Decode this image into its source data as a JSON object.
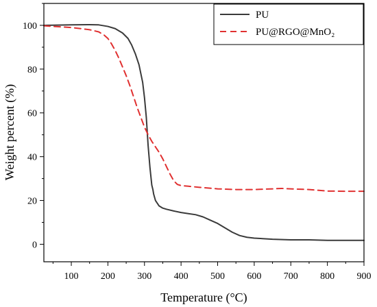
{
  "chart_data": {
    "type": "line",
    "xlabel": "Temperature (°C)",
    "ylabel": "Weight percent (%)",
    "xlim": [
      25,
      900
    ],
    "ylim": [
      -8,
      110
    ],
    "x_ticks": [
      100,
      200,
      300,
      400,
      500,
      600,
      700,
      800,
      900
    ],
    "y_ticks": [
      0,
      20,
      40,
      60,
      80,
      100
    ],
    "grid": false,
    "legend_position": "top-right",
    "series": [
      {
        "name": "PU",
        "color": "#3a3a3a",
        "dash": "solid",
        "x": [
          25,
          100,
          150,
          175,
          200,
          220,
          240,
          255,
          265,
          275,
          285,
          295,
          300,
          305,
          310,
          315,
          320,
          323,
          325,
          330,
          340,
          350,
          360,
          380,
          400,
          420,
          440,
          460,
          480,
          500,
          520,
          540,
          560,
          580,
          600,
          650,
          700,
          750,
          800,
          850,
          900
        ],
        "y": [
          100,
          100.2,
          100.3,
          100.2,
          99.5,
          98.5,
          96.5,
          94,
          91,
          87,
          82,
          74,
          67,
          58,
          45,
          35,
          27,
          25,
          23,
          20,
          17.5,
          16.5,
          16,
          15.2,
          14.5,
          14,
          13.5,
          12.5,
          11,
          9.5,
          7.5,
          5.5,
          4,
          3.2,
          2.8,
          2.3,
          2,
          2,
          1.8,
          1.8,
          1.8
        ]
      },
      {
        "name": "PU@RGO@MnO₂",
        "color": "#e03030",
        "dash": "dashed",
        "x": [
          25,
          50,
          100,
          150,
          175,
          190,
          200,
          210,
          220,
          230,
          240,
          250,
          260,
          270,
          280,
          290,
          300,
          310,
          320,
          330,
          340,
          350,
          360,
          370,
          380,
          390,
          400,
          420,
          450,
          500,
          550,
          600,
          650,
          675,
          700,
          750,
          800,
          850,
          900
        ],
        "y": [
          99.8,
          99.5,
          99,
          98,
          97,
          95.5,
          94,
          91.5,
          88.5,
          85,
          81,
          77,
          72.5,
          67.5,
          62.5,
          58,
          53.5,
          50,
          47,
          44.5,
          42,
          39,
          35.5,
          32,
          29,
          27.3,
          26.8,
          26.5,
          26,
          25.3,
          25,
          25,
          25.3,
          25.5,
          25.3,
          25,
          24.3,
          24.2,
          24.2
        ]
      }
    ]
  }
}
